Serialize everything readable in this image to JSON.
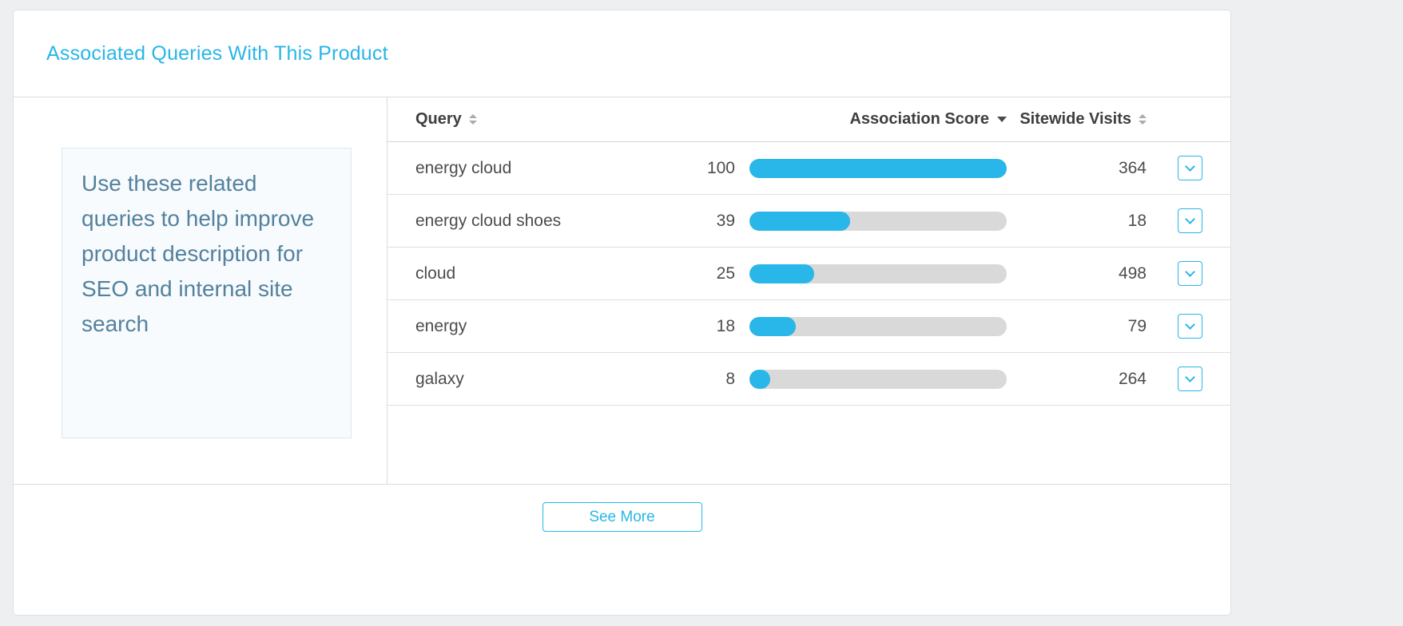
{
  "card": {
    "title": "Associated Queries With This Product"
  },
  "info_panel": {
    "text": "Use these related queries to help improve product description for SEO and internal site search"
  },
  "table": {
    "columns": {
      "query": "Query",
      "association_score": "Association Score",
      "sitewide_visits": "Sitewide Visits"
    },
    "sort_state": {
      "query": "none",
      "association_score": "desc",
      "sitewide_visits": "none"
    },
    "score_max": 100,
    "rows": [
      {
        "query": "energy cloud",
        "score": 100,
        "visits": 364
      },
      {
        "query": "energy cloud shoes",
        "score": 39,
        "visits": 18
      },
      {
        "query": "cloud",
        "score": 25,
        "visits": 498
      },
      {
        "query": "energy",
        "score": 18,
        "visits": 79
      },
      {
        "query": "galaxy",
        "score": 8,
        "visits": 264
      }
    ]
  },
  "footer": {
    "see_more_label": "See More"
  },
  "colors": {
    "accent": "#29b6e8",
    "bar_track": "#d9d9d9",
    "info_text": "#54819e",
    "page_background": "#edeff1"
  }
}
